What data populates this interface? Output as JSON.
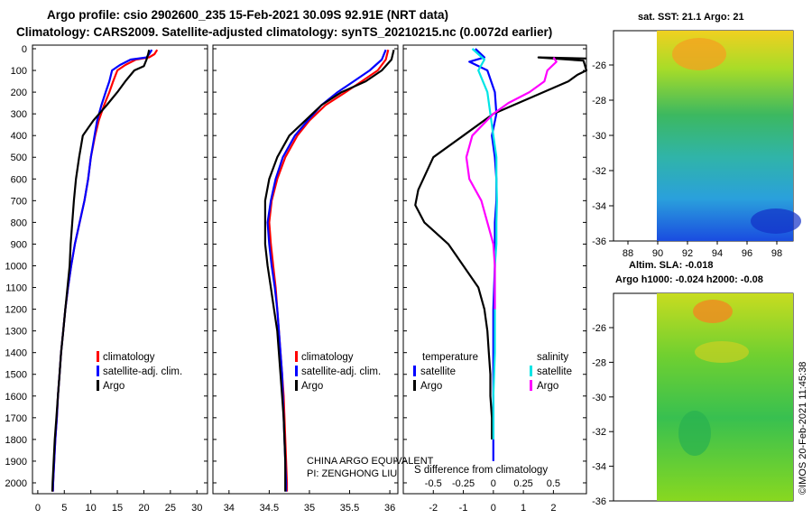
{
  "header": {
    "line1": "Argo profile: csio 2902600_235 15-Feb-2021 30.09S 92.91E (NRT data)",
    "line2": "Climatology: CARS2009. Satellite-adjusted climatology: synTS_20210215.nc (0.0072d earlier)"
  },
  "sst_map": {
    "title": "sat. SST: 21.1 Argo: 21",
    "xticks": [
      "88",
      "90",
      "92",
      "94",
      "96",
      "98"
    ],
    "yticks": [
      "-26",
      "-28",
      "-30",
      "-32",
      "-34",
      "-36"
    ]
  },
  "sla_map": {
    "title1": "Altim. SLA: -0.018",
    "title2": "Argo h1000: -0.024 h2000: -0.08",
    "yticks": [
      "-26",
      "-28",
      "-30",
      "-32",
      "-34",
      "-36"
    ]
  },
  "credits": {
    "owner1": "CHINA ARGO EQUIVALENT",
    "owner2": "PI: ZENGHONG LIU",
    "stamp": "©IMOS 20-Feb-2021 11:45:38"
  },
  "colors": {
    "climatology": "#ff0000",
    "satellite": "#0000ff",
    "argo": "#000000",
    "salinity_sat": "#00e5e5",
    "salinity_argo": "#ff00ff"
  },
  "chart_data": [
    {
      "type": "line",
      "panel": "temperature",
      "ylim": [
        2050,
        0
      ],
      "yticks": [
        0,
        100,
        200,
        300,
        400,
        500,
        600,
        700,
        800,
        900,
        1000,
        1100,
        1200,
        1300,
        1400,
        1500,
        1600,
        1700,
        1800,
        1900,
        2000
      ],
      "xlim": [
        -1,
        32
      ],
      "xticks": [
        0,
        5,
        10,
        15,
        20,
        25,
        30
      ],
      "series": [
        {
          "name": "climatology",
          "color": "#ff0000",
          "points": [
            [
              22.5,
              5
            ],
            [
              22,
              25
            ],
            [
              21,
              40
            ],
            [
              18.5,
              50
            ],
            [
              16.5,
              75
            ],
            [
              15,
              100
            ],
            [
              14.2,
              150
            ],
            [
              13.5,
              200
            ],
            [
              12.5,
              260
            ],
            [
              11.5,
              330
            ],
            [
              10.8,
              400
            ],
            [
              10,
              500
            ],
            [
              9.5,
              600
            ],
            [
              8.8,
              700
            ],
            [
              7.9,
              800
            ],
            [
              7,
              900
            ],
            [
              6.3,
              1000
            ],
            [
              5.7,
              1100
            ],
            [
              5.2,
              1200
            ],
            [
              4.8,
              1300
            ],
            [
              4.4,
              1400
            ],
            [
              4.1,
              1500
            ],
            [
              3.8,
              1600
            ],
            [
              3.6,
              1700
            ],
            [
              3.3,
              1800
            ],
            [
              3.1,
              1900
            ],
            [
              2.9,
              2000
            ],
            [
              2.85,
              2040
            ]
          ]
        },
        {
          "name": "satellite-adj. clim.",
          "color": "#0000ff",
          "points": [
            [
              21.5,
              5
            ],
            [
              21,
              25
            ],
            [
              20.5,
              40
            ],
            [
              17.5,
              50
            ],
            [
              15.5,
              75
            ],
            [
              14,
              100
            ],
            [
              13.5,
              150
            ],
            [
              12.8,
              200
            ],
            [
              12,
              260
            ],
            [
              11.2,
              330
            ],
            [
              10.7,
              400
            ],
            [
              10,
              500
            ],
            [
              9.5,
              600
            ],
            [
              8.8,
              700
            ],
            [
              7.9,
              800
            ],
            [
              7,
              900
            ],
            [
              6.3,
              1000
            ],
            [
              5.7,
              1100
            ],
            [
              5.2,
              1200
            ],
            [
              4.8,
              1300
            ],
            [
              4.4,
              1400
            ],
            [
              4.1,
              1500
            ],
            [
              3.8,
              1600
            ],
            [
              3.6,
              1700
            ],
            [
              3.3,
              1800
            ],
            [
              3.1,
              1900
            ],
            [
              2.9,
              2000
            ],
            [
              2.85,
              2040
            ]
          ]
        },
        {
          "name": "Argo",
          "color": "#000000",
          "points": [
            [
              21,
              5
            ],
            [
              20.8,
              25
            ],
            [
              20.5,
              50
            ],
            [
              20,
              80
            ],
            [
              18.2,
              100
            ],
            [
              16.5,
              150
            ],
            [
              15,
              200
            ],
            [
              13,
              260
            ],
            [
              10.5,
              330
            ],
            [
              8.5,
              400
            ],
            [
              7.8,
              500
            ],
            [
              7.2,
              600
            ],
            [
              6.8,
              700
            ],
            [
              6.5,
              800
            ],
            [
              6.2,
              900
            ],
            [
              6,
              1000
            ],
            [
              5.6,
              1100
            ],
            [
              5.2,
              1200
            ],
            [
              4.8,
              1300
            ],
            [
              4.4,
              1400
            ],
            [
              4.1,
              1500
            ],
            [
              3.8,
              1600
            ],
            [
              3.5,
              1700
            ],
            [
              3.2,
              1800
            ],
            [
              3,
              1900
            ],
            [
              2.8,
              2000
            ],
            [
              2.75,
              2040
            ]
          ]
        }
      ],
      "legend": [
        "climatology",
        "satellite-adj. clim.",
        "Argo"
      ]
    },
    {
      "type": "line",
      "panel": "salinity",
      "ylim": [
        2050,
        0
      ],
      "xlim": [
        33.8,
        36.1
      ],
      "xticks": [
        34,
        34.5,
        35,
        35.5,
        36
      ],
      "series": [
        {
          "name": "climatology",
          "color": "#ff0000",
          "points": [
            [
              35.98,
              5
            ],
            [
              35.95,
              50
            ],
            [
              35.85,
              100
            ],
            [
              35.65,
              150
            ],
            [
              35.45,
              200
            ],
            [
              35.2,
              260
            ],
            [
              35,
              330
            ],
            [
              34.85,
              400
            ],
            [
              34.7,
              500
            ],
            [
              34.6,
              600
            ],
            [
              34.53,
              700
            ],
            [
              34.5,
              800
            ],
            [
              34.52,
              900
            ],
            [
              34.55,
              1000
            ],
            [
              34.58,
              1100
            ],
            [
              34.6,
              1200
            ],
            [
              34.62,
              1300
            ],
            [
              34.64,
              1400
            ],
            [
              34.66,
              1500
            ],
            [
              34.68,
              1600
            ],
            [
              34.69,
              1700
            ],
            [
              34.7,
              1800
            ],
            [
              34.71,
              1900
            ],
            [
              34.72,
              2000
            ],
            [
              34.72,
              2040
            ]
          ]
        },
        {
          "name": "satellite-adj. clim.",
          "color": "#0000ff",
          "points": [
            [
              35.95,
              5
            ],
            [
              35.9,
              50
            ],
            [
              35.75,
              100
            ],
            [
              35.55,
              150
            ],
            [
              35.35,
              200
            ],
            [
              35.15,
              260
            ],
            [
              34.98,
              330
            ],
            [
              34.82,
              400
            ],
            [
              34.67,
              500
            ],
            [
              34.58,
              600
            ],
            [
              34.52,
              700
            ],
            [
              34.48,
              800
            ],
            [
              34.5,
              900
            ],
            [
              34.53,
              1000
            ],
            [
              34.57,
              1100
            ],
            [
              34.6,
              1200
            ],
            [
              34.62,
              1300
            ],
            [
              34.64,
              1400
            ],
            [
              34.66,
              1500
            ],
            [
              34.67,
              1600
            ],
            [
              34.68,
              1700
            ],
            [
              34.69,
              1800
            ],
            [
              34.7,
              1900
            ],
            [
              34.71,
              2000
            ],
            [
              34.71,
              2040
            ]
          ]
        },
        {
          "name": "Argo",
          "color": "#000000",
          "points": [
            [
              36.05,
              5
            ],
            [
              36.02,
              50
            ],
            [
              35.9,
              100
            ],
            [
              35.7,
              150
            ],
            [
              35.4,
              200
            ],
            [
              35.15,
              260
            ],
            [
              34.95,
              330
            ],
            [
              34.75,
              400
            ],
            [
              34.6,
              500
            ],
            [
              34.5,
              600
            ],
            [
              34.45,
              700
            ],
            [
              34.45,
              800
            ],
            [
              34.45,
              900
            ],
            [
              34.48,
              1000
            ],
            [
              34.52,
              1100
            ],
            [
              34.56,
              1200
            ],
            [
              34.6,
              1300
            ],
            [
              34.62,
              1400
            ],
            [
              34.64,
              1500
            ],
            [
              34.66,
              1600
            ],
            [
              34.68,
              1700
            ],
            [
              34.69,
              1800
            ],
            [
              34.7,
              1900
            ],
            [
              34.7,
              2000
            ],
            [
              34.7,
              2040
            ]
          ]
        }
      ],
      "legend": [
        "climatology",
        "satellite-adj. clim.",
        "Argo"
      ]
    },
    {
      "type": "line",
      "panel": "difference",
      "xlabel": "S difference from climatology",
      "ylim": [
        2050,
        0
      ],
      "xlim": [
        -3,
        3.1
      ],
      "xticks_temperature": [
        -2,
        -1,
        0,
        1,
        2
      ],
      "xticks_salinity": [
        -0.5,
        -0.25,
        0,
        0.25,
        0.5
      ],
      "series": [
        {
          "name": "temperature satellite",
          "color": "#0000ff",
          "points": [
            [
              -0.6,
              0
            ],
            [
              -0.3,
              40
            ],
            [
              -0.8,
              60
            ],
            [
              -0.2,
              100
            ],
            [
              0.05,
              200
            ],
            [
              0.1,
              300
            ],
            [
              -0.05,
              400
            ],
            [
              0.05,
              500
            ],
            [
              0.1,
              600
            ],
            [
              0.1,
              700
            ],
            [
              0.05,
              800
            ],
            [
              0.05,
              900
            ],
            [
              0.05,
              1000
            ],
            [
              0,
              1200
            ],
            [
              0,
              1400
            ],
            [
              0,
              1600
            ],
            [
              0,
              1800
            ],
            [
              0,
              1900
            ]
          ]
        },
        {
          "name": "temperature Argo",
          "color": "#000000",
          "points": [
            [
              3.1,
              45
            ],
            [
              1.5,
              40
            ],
            [
              3,
              55
            ],
            [
              3.1,
              100
            ],
            [
              2.8,
              120
            ],
            [
              2.5,
              150
            ],
            [
              1.5,
              210
            ],
            [
              0,
              300
            ],
            [
              -1,
              400
            ],
            [
              -2,
              500
            ],
            [
              -2.5,
              650
            ],
            [
              -2.6,
              720
            ],
            [
              -2.3,
              800
            ],
            [
              -1.5,
              900
            ],
            [
              -1,
              1000
            ],
            [
              -0.5,
              1100
            ],
            [
              -0.3,
              1200
            ],
            [
              -0.2,
              1300
            ],
            [
              -0.15,
              1400
            ],
            [
              -0.1,
              1500
            ],
            [
              -0.1,
              1600
            ],
            [
              -0.05,
              1700
            ],
            [
              -0.05,
              1800
            ]
          ]
        },
        {
          "name": "salinity satellite",
          "color": "#00e5e5",
          "points": [
            [
              -0.7,
              0
            ],
            [
              -0.3,
              50
            ],
            [
              -0.5,
              100
            ],
            [
              -0.2,
              200
            ],
            [
              -0.1,
              300
            ],
            [
              0,
              400
            ],
            [
              0.1,
              500
            ],
            [
              0.1,
              600
            ],
            [
              0.12,
              700
            ],
            [
              0.1,
              800
            ],
            [
              0.1,
              900
            ],
            [
              0.05,
              1000
            ],
            [
              0.05,
              1200
            ],
            [
              0.05,
              1400
            ],
            [
              0,
              1600
            ],
            [
              0,
              1800
            ]
          ]
        },
        {
          "name": "salinity Argo",
          "color": "#ff00ff",
          "points": [
            [
              2,
              40
            ],
            [
              2.1,
              60
            ],
            [
              1.8,
              100
            ],
            [
              1.7,
              150
            ],
            [
              1.2,
              200
            ],
            [
              0.5,
              250
            ],
            [
              0,
              300
            ],
            [
              -0.7,
              400
            ],
            [
              -0.9,
              500
            ],
            [
              -0.8,
              600
            ],
            [
              -0.4,
              700
            ],
            [
              -0.2,
              800
            ],
            [
              0,
              900
            ],
            [
              0.05,
              1000
            ],
            [
              0.05,
              1100
            ],
            [
              0.05,
              1200
            ]
          ]
        }
      ],
      "legend": [
        "temperature",
        "satellite",
        "Argo",
        "salinity",
        "satellite",
        "Argo"
      ]
    }
  ]
}
